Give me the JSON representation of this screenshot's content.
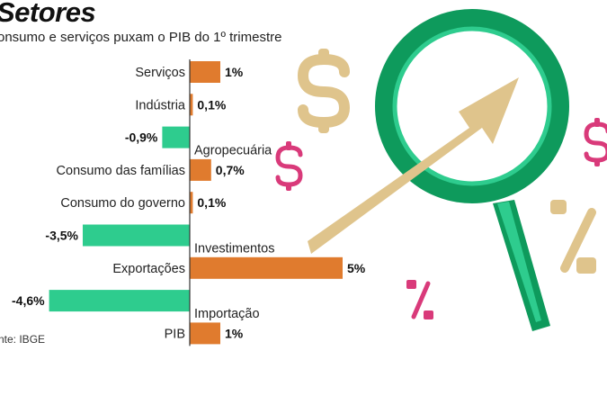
{
  "title": "Setores",
  "subtitle": "onsumo e serviços puxam o PIB do 1º trimestre",
  "source": "nte: IBGE",
  "colors": {
    "positive": "#e07b2e",
    "negative": "#2ecc8e",
    "axis": "#333333",
    "magnifier": "#0e9a5c",
    "arrow": "#dfc48c",
    "accent": "#d93a7a"
  },
  "chart_data": {
    "type": "bar",
    "orientation": "horizontal",
    "categories": [
      "Serviços",
      "Indústria",
      "Agropecuária",
      "Consumo das famílias",
      "Consumo do governo",
      "Investimentos",
      "Exportações",
      "Importação",
      "PIB"
    ],
    "values": [
      1,
      0.1,
      -0.9,
      0.7,
      0.1,
      -3.5,
      5,
      -4.6,
      1
    ],
    "value_labels": [
      "1%",
      "0,1%",
      "-0,9%",
      "0,7%",
      "0,1%",
      "-3,5%",
      "5%",
      "-4,6%",
      "1%"
    ],
    "unit": "%"
  },
  "illustration": {
    "icons": [
      "dollar-sign-icon",
      "dollar-sign-icon",
      "dollar-sign-icon",
      "percent-icon",
      "percent-icon",
      "magnifying-glass-icon",
      "rising-arrow-icon"
    ]
  }
}
